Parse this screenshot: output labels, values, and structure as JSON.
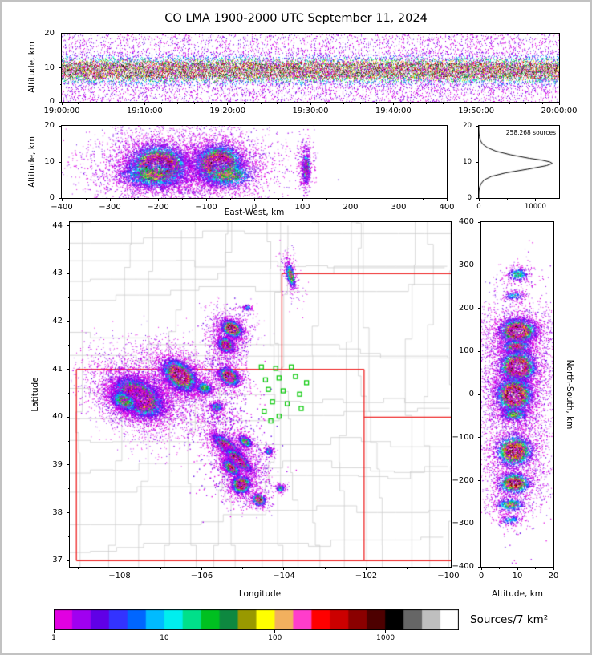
{
  "title": "CO LMA 1900-2000 UTC September 11, 2024",
  "chart_data": {
    "type": "scatter",
    "figure": "Lightning Mapping Array source density, multi-panel (time-height, east-west cross section, altitude histogram, plan-view map, north-south cross section)",
    "colorbar": {
      "label": "Sources/7 km²",
      "tick_values": [
        1,
        10,
        100,
        1000
      ],
      "tick_labels": [
        "1",
        "10",
        "100",
        "1000"
      ],
      "max_value": 4600,
      "segments": [
        "#e100e1",
        "#a000f0",
        "#6000e6",
        "#3333ff",
        "#0066ff",
        "#00bbff",
        "#00eeee",
        "#00e08a",
        "#00c020",
        "#0e8840",
        "#999900",
        "#ffff00",
        "#f2b05e",
        "#ff3dcb",
        "#ff0000",
        "#cc0000",
        "#8b0000",
        "#4d0000",
        "#000000",
        "#666666",
        "#bfbfbf",
        "#ffffff"
      ]
    },
    "panels": {
      "time_height": {
        "ylabel": "Altitude, km",
        "xlim": [
          0,
          3600
        ],
        "ylim": [
          0,
          20
        ],
        "xtick_values": [
          0,
          600,
          1200,
          1800,
          2400,
          3000,
          3600
        ],
        "xtick_labels": [
          "19:00:00",
          "19:10:00",
          "19:20:00",
          "19:30:00",
          "19:40:00",
          "19:50:00",
          "20:00:00"
        ],
        "ytick_values": [
          0,
          10,
          20
        ],
        "ytick_labels": [
          "0",
          "10",
          "20"
        ],
        "xminor_step": 120,
        "yminor_step": 5,
        "band": {
          "center": 9.4,
          "sigma": 2.0,
          "per_col": 26,
          "uniform_per_col": 7,
          "streak_prob": 0.38
        }
      },
      "east_west": {
        "xlabel": "East-West, km",
        "ylabel": "Altitude, km",
        "xlim": [
          -400,
          400
        ],
        "ylim": [
          0,
          20
        ],
        "xtick_values": [
          -400,
          -300,
          -200,
          -100,
          0,
          100,
          200,
          300,
          400
        ],
        "xtick_labels": [
          "−400",
          "−300",
          "−200",
          "−100",
          "0",
          "100",
          "200",
          "300",
          "400"
        ],
        "ytick_values": [
          0,
          10,
          20
        ],
        "ytick_labels": [
          "0",
          "10",
          "20"
        ],
        "xminor_step": 50,
        "yminor_step": 5,
        "cells": [
          {
            "cx": -200,
            "cy": 9,
            "rx": 30,
            "ry": 2.8,
            "n": 4500,
            "peak": 1,
            "seed": 71
          },
          {
            "cx": -212,
            "cy": 6.5,
            "rx": 38,
            "ry": 2.0,
            "n": 1000,
            "peak": 0.5,
            "seed": 72
          },
          {
            "cx": -75,
            "cy": 9.5,
            "rx": 24,
            "ry": 2.6,
            "n": 4000,
            "peak": 1,
            "seed": 73
          },
          {
            "cx": -55,
            "cy": 6.5,
            "rx": 30,
            "ry": 2.0,
            "n": 800,
            "peak": 0.5,
            "seed": 74
          },
          {
            "cx": 107,
            "cy": 8.5,
            "rx": 4,
            "ry": 2.2,
            "n": 400,
            "peak": 0.65,
            "seed": 75
          },
          {
            "type": "noise",
            "cx": -150,
            "cy": 10,
            "rx": 90,
            "ry": 3.5,
            "n": 1200,
            "seed": 76
          },
          {
            "type": "noise",
            "cx": -185,
            "cy": 5,
            "rx": 70,
            "ry": 2,
            "n": 300,
            "seed": 77
          },
          {
            "type": "noise",
            "cx": 105,
            "cy": 9,
            "rx": 6,
            "ry": 3.5,
            "n": 250,
            "seed": 78
          }
        ]
      },
      "histogram": {
        "annotation": "258,268 sources",
        "xlim": [
          0,
          14200
        ],
        "ylim": [
          0,
          20
        ],
        "xtick_values": [
          0,
          10000
        ],
        "xtick_labels": [
          "0",
          "10000"
        ],
        "ytick_values": [
          0,
          10,
          20
        ],
        "ytick_labels": [
          "0",
          "10",
          "20"
        ],
        "xminor_step": 5000,
        "yminor_step": 5,
        "profile": [
          [
            0,
            0
          ],
          [
            1,
            5
          ],
          [
            2,
            30
          ],
          [
            3,
            120
          ],
          [
            4,
            400
          ],
          [
            5,
            900
          ],
          [
            6,
            2200
          ],
          [
            7,
            4800
          ],
          [
            8,
            8600
          ],
          [
            9,
            12000
          ],
          [
            9.6,
            13000
          ],
          [
            10,
            12600
          ],
          [
            10.5,
            11200
          ],
          [
            11,
            9000
          ],
          [
            12,
            5600
          ],
          [
            13,
            3000
          ],
          [
            14,
            1500
          ],
          [
            15,
            650
          ],
          [
            16,
            250
          ],
          [
            17,
            80
          ],
          [
            18,
            20
          ],
          [
            19,
            4
          ],
          [
            20,
            0
          ]
        ]
      },
      "map": {
        "xlabel": "Longitude",
        "ylabel": "Latitude",
        "xlim": [
          -109.21,
          -99.94
        ],
        "ylim": [
          36.87,
          44.08
        ],
        "xtick_values": [
          -108,
          -106,
          -104,
          -102,
          -100
        ],
        "xtick_labels": [
          "−108",
          "−106",
          "−104",
          "−102",
          "−100"
        ],
        "ytick_values": [
          37,
          38,
          39,
          40,
          41,
          42,
          43,
          44
        ],
        "ytick_labels": [
          "37",
          "38",
          "39",
          "40",
          "41",
          "42",
          "43",
          "44"
        ],
        "xminor_step": 1,
        "yminor_step": 0.5,
        "county_grid": {
          "color": "#c9c9c9"
        },
        "state_line_color": "#ee2222",
        "station_color": "#00c800",
        "state_lines": [
          [
            [
              -109.05,
              37.0
            ],
            [
              -109.05,
              41.0
            ]
          ],
          [
            [
              -109.05,
              41.0
            ],
            [
              -102.05,
              41.0
            ]
          ],
          [
            [
              -102.05,
              41.0
            ],
            [
              -102.05,
              37.0
            ]
          ],
          [
            [
              -109.05,
              37.0
            ],
            [
              -99.9,
              37.0
            ]
          ],
          [
            [
              -104.05,
              41.0
            ],
            [
              -104.05,
              43.0
            ]
          ],
          [
            [
              -104.05,
              43.0
            ],
            [
              -99.9,
              43.0
            ]
          ],
          [
            [
              -102.05,
              40.0
            ],
            [
              -99.9,
              40.0
            ]
          ]
        ],
        "stations": [
          [
            -104.55,
            41.05
          ],
          [
            -104.2,
            41.02
          ],
          [
            -103.82,
            41.05
          ],
          [
            -104.45,
            40.78
          ],
          [
            -104.12,
            40.82
          ],
          [
            -103.72,
            40.85
          ],
          [
            -103.45,
            40.72
          ],
          [
            -104.38,
            40.58
          ],
          [
            -104.02,
            40.55
          ],
          [
            -103.62,
            40.48
          ],
          [
            -104.28,
            40.32
          ],
          [
            -103.92,
            40.28
          ],
          [
            -104.48,
            40.12
          ],
          [
            -104.12,
            40.02
          ],
          [
            -103.58,
            40.18
          ],
          [
            -104.32,
            39.92
          ]
        ],
        "cells": [
          {
            "cx": -107.55,
            "cy": 40.42,
            "rx": 0.3,
            "ry": 0.17,
            "angle": -25,
            "n": 6000,
            "peak": 1,
            "seed": 21
          },
          {
            "cx": -107.9,
            "cy": 40.35,
            "rx": 0.18,
            "ry": 0.1,
            "angle": -20,
            "n": 800,
            "peak": 0.55,
            "seed": 41
          },
          {
            "cx": -106.55,
            "cy": 40.88,
            "rx": 0.22,
            "ry": 0.13,
            "angle": -30,
            "n": 3500,
            "peak": 1,
            "seed": 22
          },
          {
            "cx": -105.95,
            "cy": 40.62,
            "rx": 0.1,
            "ry": 0.07,
            "angle": 0,
            "n": 300,
            "peak": 0.45,
            "seed": 23
          },
          {
            "cx": -105.42,
            "cy": 41.52,
            "rx": 0.1,
            "ry": 0.07,
            "angle": -20,
            "n": 900,
            "peak": 0.9,
            "seed": 24
          },
          {
            "cx": -105.28,
            "cy": 41.86,
            "rx": 0.13,
            "ry": 0.08,
            "angle": -20,
            "n": 1300,
            "peak": 0.95,
            "seed": 25
          },
          {
            "cx": -105.35,
            "cy": 40.86,
            "rx": 0.13,
            "ry": 0.08,
            "angle": -25,
            "n": 1100,
            "peak": 0.92,
            "seed": 26
          },
          {
            "cx": -105.65,
            "cy": 40.22,
            "rx": 0.08,
            "ry": 0.05,
            "angle": 0,
            "n": 200,
            "peak": 0.4,
            "seed": 27
          },
          {
            "cx": -105.38,
            "cy": 39.38,
            "rx": 0.2,
            "ry": 0.07,
            "angle": -35,
            "n": 1400,
            "peak": 0.88,
            "seed": 28
          },
          {
            "cx": -105.12,
            "cy": 39.12,
            "rx": 0.18,
            "ry": 0.06,
            "angle": -35,
            "n": 1300,
            "peak": 0.92,
            "seed": 29
          },
          {
            "cx": -104.95,
            "cy": 39.5,
            "rx": 0.09,
            "ry": 0.05,
            "angle": -30,
            "n": 350,
            "peak": 0.55,
            "seed": 30
          },
          {
            "cx": -105.3,
            "cy": 38.95,
            "rx": 0.12,
            "ry": 0.06,
            "angle": -35,
            "n": 600,
            "peak": 0.7,
            "seed": 31
          },
          {
            "cx": -105.05,
            "cy": 38.6,
            "rx": 0.11,
            "ry": 0.09,
            "angle": 0,
            "n": 1000,
            "peak": 0.97,
            "seed": 32
          },
          {
            "cx": -104.62,
            "cy": 38.28,
            "rx": 0.08,
            "ry": 0.06,
            "angle": -20,
            "n": 450,
            "peak": 0.8,
            "seed": 33
          },
          {
            "cx": -104.1,
            "cy": 38.52,
            "rx": 0.05,
            "ry": 0.04,
            "angle": 0,
            "n": 120,
            "peak": 0.4,
            "seed": 34
          },
          {
            "cx": -104.38,
            "cy": 39.3,
            "rx": 0.05,
            "ry": 0.04,
            "angle": 0,
            "n": 110,
            "peak": 0.35,
            "seed": 35
          },
          {
            "cx": -103.85,
            "cy": 42.98,
            "rx": 0.05,
            "ry": 0.13,
            "angle": 15,
            "n": 400,
            "peak": 0.6,
            "seed": 36
          },
          {
            "cx": -104.9,
            "cy": 42.3,
            "rx": 0.05,
            "ry": 0.04,
            "angle": 0,
            "n": 60,
            "peak": 0.25,
            "seed": 37
          },
          {
            "type": "noise",
            "cx": -107.4,
            "cy": 40.5,
            "rx": 0.55,
            "ry": 0.3,
            "n": 900,
            "seed": 38
          },
          {
            "type": "noise",
            "cx": -105.2,
            "cy": 39.2,
            "rx": 0.45,
            "ry": 0.5,
            "n": 500,
            "seed": 39
          },
          {
            "type": "noise",
            "cx": -105.4,
            "cy": 41.3,
            "rx": 0.3,
            "ry": 0.5,
            "n": 300,
            "seed": 40
          },
          {
            "type": "noise",
            "cx": -105.6,
            "cy": 40.0,
            "rx": 0.3,
            "ry": 0.25,
            "n": 200,
            "seed": 42
          }
        ]
      },
      "north_south": {
        "xlabel": "Altitude, km",
        "ylabel": "North-South, km",
        "xlim": [
          0,
          20
        ],
        "ylim": [
          -400,
          400
        ],
        "xtick_values": [
          0,
          10,
          20
        ],
        "xtick_labels": [
          "0",
          "10",
          "20"
        ],
        "ytick_values": [
          -400,
          -300,
          -200,
          -100,
          0,
          100,
          200,
          300,
          400
        ],
        "ytick_labels": [
          "−400",
          "−300",
          "−200",
          "−100",
          "0",
          "100",
          "200",
          "300",
          "400"
        ],
        "xminor_step": 5,
        "yminor_step": 50,
        "cells": [
          {
            "cx": 10,
            "cy": 148,
            "rx": 2.5,
            "ry": 14,
            "n": 2500,
            "peak": 1,
            "seed": 51
          },
          {
            "cx": 9.5,
            "cy": 112,
            "rx": 2,
            "ry": 8,
            "n": 600,
            "peak": 0.65,
            "seed": 52
          },
          {
            "cx": 10,
            "cy": 65,
            "rx": 2.5,
            "ry": 18,
            "n": 2500,
            "peak": 1,
            "seed": 53
          },
          {
            "cx": 9,
            "cy": 0,
            "rx": 2.5,
            "ry": 20,
            "n": 3000,
            "peak": 1,
            "seed": 54
          },
          {
            "cx": 9,
            "cy": -45,
            "rx": 2,
            "ry": 8,
            "n": 400,
            "peak": 0.5,
            "seed": 55
          },
          {
            "cx": 9,
            "cy": -130,
            "rx": 2.5,
            "ry": 18,
            "n": 1800,
            "peak": 0.9,
            "seed": 56
          },
          {
            "cx": 9,
            "cy": -205,
            "rx": 2.2,
            "ry": 12,
            "n": 1000,
            "peak": 0.85,
            "seed": 57
          },
          {
            "cx": 8,
            "cy": -255,
            "rx": 2,
            "ry": 8,
            "n": 400,
            "peak": 0.5,
            "seed": 58
          },
          {
            "cx": 8,
            "cy": -290,
            "rx": 1.5,
            "ry": 6,
            "n": 150,
            "peak": 0.3,
            "seed": 59
          },
          {
            "cx": 9,
            "cy": 230,
            "rx": 1.5,
            "ry": 5,
            "n": 120,
            "peak": 0.3,
            "seed": 60
          },
          {
            "cx": 10,
            "cy": 280,
            "rx": 1.5,
            "ry": 8,
            "n": 250,
            "peak": 0.4,
            "seed": 61
          },
          {
            "type": "noise",
            "cx": 10,
            "cy": 60,
            "rx": 4.5,
            "ry": 110,
            "n": 800,
            "seed": 62
          },
          {
            "type": "noise",
            "cx": 10,
            "cy": -150,
            "rx": 4.5,
            "ry": 100,
            "n": 500,
            "seed": 63
          }
        ]
      }
    }
  }
}
